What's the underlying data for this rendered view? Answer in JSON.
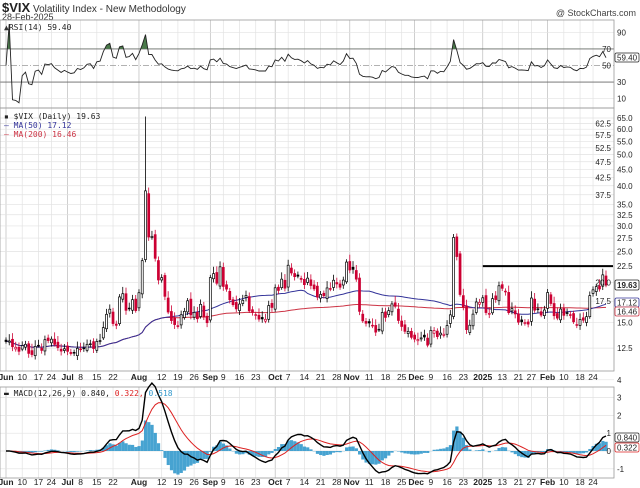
{
  "header": {
    "symbol": "$VIX",
    "title": "Volatility Index - New Methodology",
    "date": "28-Feb-2025",
    "brand": "@ StockCharts.com"
  },
  "colors": {
    "up": "#000000",
    "down": "#cc0033",
    "ma50": "#333399",
    "ma200": "#cc3344",
    "macd": "#000000",
    "signal": "#dd2222",
    "histogram": "#3399cc",
    "rsi_fill": "#4a7a4a"
  },
  "legends": {
    "rsi": "RSI(14) 59.40",
    "price": "$VIX (Daily) 19.63",
    "ma50": "MA(50) 17.12",
    "ma200": "MA(200) 16.46",
    "macd_label": "MACD(12,26,9) 0.840,",
    "macd_signal": "0.322,",
    "macd_hist": "0.518"
  },
  "badges": {
    "rsi": "59.40",
    "price": "19.63",
    "ma50": "17.12",
    "ma200": "16.46",
    "macd": "0.840",
    "signal": "0.322"
  },
  "chart_data": {
    "type": "candlestick",
    "scale": "log",
    "ylim": [
      11,
      68
    ],
    "price_ticks": [
      12.5,
      15.0,
      17.5,
      20.0,
      22.5,
      25.0,
      27.5,
      30.0,
      32.5,
      35.0,
      37.5,
      40.0,
      42.5,
      45.0,
      47.5,
      50.0,
      52.5,
      55.0,
      57.5,
      60.0,
      62.5,
      65.0
    ],
    "rsi_ticks": [
      10,
      30,
      50,
      70,
      90
    ],
    "macd_ticks": [
      -1,
      0,
      1,
      2,
      3,
      4
    ],
    "resistance": {
      "value": 22.5,
      "from": "2025-01-02"
    },
    "highs": {
      "2024-08-05": 65.73,
      "2024-12-18": 28.32
    },
    "date_labels": [
      [
        "2024-06-03",
        "Jun",
        true
      ],
      [
        "2024-06-10",
        "10",
        false
      ],
      [
        "2024-06-17",
        "17",
        false
      ],
      [
        "2024-06-24",
        "24",
        false
      ],
      [
        "2024-07-01",
        "Jul",
        true
      ],
      [
        "2024-07-08",
        "8",
        false
      ],
      [
        "2024-07-15",
        "15",
        false
      ],
      [
        "2024-07-22",
        "22",
        false
      ],
      [
        "2024-08-01",
        "Aug",
        true
      ],
      [
        "2024-08-12",
        "12",
        false
      ],
      [
        "2024-08-19",
        "19",
        false
      ],
      [
        "2024-08-26",
        "26",
        false
      ],
      [
        "2024-09-03",
        "Sep",
        true
      ],
      [
        "2024-09-09",
        "9",
        false
      ],
      [
        "2024-09-16",
        "16",
        false
      ],
      [
        "2024-09-23",
        "23",
        false
      ],
      [
        "2024-10-01",
        "Oct",
        true
      ],
      [
        "2024-10-07",
        "7",
        false
      ],
      [
        "2024-10-14",
        "14",
        false
      ],
      [
        "2024-10-21",
        "21",
        false
      ],
      [
        "2024-10-28",
        "28",
        false
      ],
      [
        "2024-11-01",
        "Nov",
        true
      ],
      [
        "2024-11-11",
        "11",
        false
      ],
      [
        "2024-11-18",
        "18",
        false
      ],
      [
        "2024-11-25",
        "25",
        false
      ],
      [
        "2024-12-02",
        "Dec",
        true
      ],
      [
        "2024-12-09",
        "9",
        false
      ],
      [
        "2024-12-16",
        "16",
        false
      ],
      [
        "2024-12-23",
        "23",
        false
      ],
      [
        "2025-01-02",
        "2025",
        true
      ],
      [
        "2025-01-13",
        "13",
        false
      ],
      [
        "2025-01-21",
        "21",
        false
      ],
      [
        "2025-01-27",
        "27",
        false
      ],
      [
        "2025-02-03",
        "Feb",
        true
      ],
      [
        "2025-02-10",
        "10",
        false
      ],
      [
        "2025-02-18",
        "18",
        false
      ],
      [
        "2025-02-24",
        "24",
        false
      ]
    ],
    "closes": [
      [
        "2024-06-03",
        13.11
      ],
      [
        "2024-06-04",
        13.16
      ],
      [
        "2024-06-05",
        12.63
      ],
      [
        "2024-06-06",
        12.58
      ],
      [
        "2024-06-07",
        12.22
      ],
      [
        "2024-06-10",
        12.74
      ],
      [
        "2024-06-11",
        12.85
      ],
      [
        "2024-06-12",
        12.04
      ],
      [
        "2024-06-13",
        11.94
      ],
      [
        "2024-06-14",
        12.66
      ],
      [
        "2024-06-17",
        12.75
      ],
      [
        "2024-06-18",
        12.3
      ],
      [
        "2024-06-20",
        13.28
      ],
      [
        "2024-06-21",
        13.2
      ],
      [
        "2024-06-24",
        13.33
      ],
      [
        "2024-06-25",
        12.84
      ],
      [
        "2024-06-26",
        12.55
      ],
      [
        "2024-06-27",
        12.24
      ],
      [
        "2024-06-28",
        12.44
      ],
      [
        "2024-07-01",
        12.22
      ],
      [
        "2024-07-02",
        12.03
      ],
      [
        "2024-07-03",
        12.09
      ],
      [
        "2024-07-05",
        12.48
      ],
      [
        "2024-07-08",
        12.37
      ],
      [
        "2024-07-09",
        12.51
      ],
      [
        "2024-07-10",
        12.85
      ],
      [
        "2024-07-11",
        12.89
      ],
      [
        "2024-07-12",
        12.46
      ],
      [
        "2024-07-15",
        13.12
      ],
      [
        "2024-07-16",
        13.19
      ],
      [
        "2024-07-17",
        14.48
      ],
      [
        "2024-07-18",
        15.93
      ],
      [
        "2024-07-19",
        16.52
      ],
      [
        "2024-07-22",
        14.91
      ],
      [
        "2024-07-23",
        14.72
      ],
      [
        "2024-07-24",
        18.04
      ],
      [
        "2024-07-25",
        18.46
      ],
      [
        "2024-07-26",
        16.39
      ],
      [
        "2024-07-29",
        16.6
      ],
      [
        "2024-07-30",
        17.69
      ],
      [
        "2024-07-31",
        16.36
      ],
      [
        "2024-08-01",
        18.59
      ],
      [
        "2024-08-02",
        23.39
      ],
      [
        "2024-08-05",
        38.57
      ],
      [
        "2024-08-06",
        27.71
      ],
      [
        "2024-08-07",
        27.85
      ],
      [
        "2024-08-08",
        23.79
      ],
      [
        "2024-08-09",
        20.37
      ],
      [
        "2024-08-12",
        20.71
      ],
      [
        "2024-08-13",
        18.12
      ],
      [
        "2024-08-14",
        16.19
      ],
      [
        "2024-08-15",
        15.23
      ],
      [
        "2024-08-16",
        14.8
      ],
      [
        "2024-08-19",
        14.65
      ],
      [
        "2024-08-20",
        15.88
      ],
      [
        "2024-08-21",
        16.27
      ],
      [
        "2024-08-22",
        17.55
      ],
      [
        "2024-08-23",
        15.86
      ],
      [
        "2024-08-26",
        16.15
      ],
      [
        "2024-08-27",
        15.43
      ],
      [
        "2024-08-28",
        17.11
      ],
      [
        "2024-08-29",
        15.65
      ],
      [
        "2024-08-30",
        15.0
      ],
      [
        "2024-09-03",
        20.72
      ],
      [
        "2024-09-04",
        21.32
      ],
      [
        "2024-09-05",
        19.9
      ],
      [
        "2024-09-06",
        22.38
      ],
      [
        "2024-09-09",
        19.45
      ],
      [
        "2024-09-10",
        19.08
      ],
      [
        "2024-09-11",
        17.69
      ],
      [
        "2024-09-12",
        17.07
      ],
      [
        "2024-09-13",
        16.56
      ],
      [
        "2024-09-16",
        17.14
      ],
      [
        "2024-09-17",
        17.61
      ],
      [
        "2024-09-18",
        18.23
      ],
      [
        "2024-09-19",
        16.33
      ],
      [
        "2024-09-20",
        16.15
      ],
      [
        "2024-09-23",
        15.89
      ],
      [
        "2024-09-24",
        15.39
      ],
      [
        "2024-09-25",
        15.41
      ],
      [
        "2024-09-26",
        15.37
      ],
      [
        "2024-09-27",
        16.96
      ],
      [
        "2024-09-30",
        16.73
      ],
      [
        "2024-10-01",
        19.26
      ],
      [
        "2024-10-02",
        18.9
      ],
      [
        "2024-10-03",
        20.49
      ],
      [
        "2024-10-04",
        19.21
      ],
      [
        "2024-10-07",
        22.64
      ],
      [
        "2024-10-08",
        21.42
      ],
      [
        "2024-10-09",
        20.86
      ],
      [
        "2024-10-10",
        20.93
      ],
      [
        "2024-10-11",
        20.46
      ],
      [
        "2024-10-14",
        19.7
      ],
      [
        "2024-10-15",
        20.64
      ],
      [
        "2024-10-16",
        19.58
      ],
      [
        "2024-10-17",
        19.11
      ],
      [
        "2024-10-18",
        18.03
      ],
      [
        "2024-10-21",
        18.37
      ],
      [
        "2024-10-22",
        18.2
      ],
      [
        "2024-10-23",
        19.24
      ],
      [
        "2024-10-24",
        19.08
      ],
      [
        "2024-10-25",
        20.33
      ],
      [
        "2024-10-28",
        19.8
      ],
      [
        "2024-10-29",
        19.34
      ],
      [
        "2024-10-30",
        20.35
      ],
      [
        "2024-10-31",
        23.16
      ],
      [
        "2024-11-01",
        21.88
      ],
      [
        "2024-11-04",
        21.98
      ],
      [
        "2024-11-05",
        20.49
      ],
      [
        "2024-11-06",
        16.27
      ],
      [
        "2024-11-07",
        15.2
      ],
      [
        "2024-11-08",
        14.94
      ],
      [
        "2024-11-11",
        14.97
      ],
      [
        "2024-11-12",
        14.71
      ],
      [
        "2024-11-13",
        14.02
      ],
      [
        "2024-11-14",
        14.31
      ],
      [
        "2024-11-15",
        16.14
      ],
      [
        "2024-11-18",
        15.58
      ],
      [
        "2024-11-19",
        16.35
      ],
      [
        "2024-11-20",
        17.16
      ],
      [
        "2024-11-21",
        16.87
      ],
      [
        "2024-11-22",
        15.24
      ],
      [
        "2024-11-25",
        14.6
      ],
      [
        "2024-11-26",
        14.1
      ],
      [
        "2024-11-27",
        14.1
      ],
      [
        "2024-11-29",
        13.51
      ],
      [
        "2024-12-02",
        13.34
      ],
      [
        "2024-12-03",
        13.3
      ],
      [
        "2024-12-04",
        13.45
      ],
      [
        "2024-12-05",
        13.54
      ],
      [
        "2024-12-06",
        12.77
      ],
      [
        "2024-12-09",
        14.19
      ],
      [
        "2024-12-10",
        14.18
      ],
      [
        "2024-12-11",
        13.58
      ],
      [
        "2024-12-12",
        13.92
      ],
      [
        "2024-12-13",
        13.81
      ],
      [
        "2024-12-16",
        14.69
      ],
      [
        "2024-12-17",
        15.87
      ],
      [
        "2024-12-18",
        27.62
      ],
      [
        "2024-12-19",
        24.09
      ],
      [
        "2024-12-20",
        18.36
      ],
      [
        "2024-12-23",
        16.78
      ],
      [
        "2024-12-24",
        14.27
      ],
      [
        "2024-12-26",
        14.73
      ],
      [
        "2024-12-27",
        15.95
      ],
      [
        "2024-12-30",
        17.4
      ],
      [
        "2024-12-31",
        17.35
      ],
      [
        "2025-01-02",
        17.93
      ],
      [
        "2025-01-03",
        16.13
      ],
      [
        "2025-01-06",
        16.04
      ],
      [
        "2025-01-07",
        17.82
      ],
      [
        "2025-01-08",
        17.7
      ],
      [
        "2025-01-10",
        19.54
      ],
      [
        "2025-01-13",
        19.19
      ],
      [
        "2025-01-14",
        18.71
      ],
      [
        "2025-01-15",
        16.12
      ],
      [
        "2025-01-16",
        16.6
      ],
      [
        "2025-01-17",
        15.97
      ],
      [
        "2025-01-21",
        15.06
      ],
      [
        "2025-01-22",
        15.1
      ],
      [
        "2025-01-23",
        15.02
      ],
      [
        "2025-01-24",
        14.85
      ],
      [
        "2025-01-27",
        17.9
      ],
      [
        "2025-01-28",
        16.41
      ],
      [
        "2025-01-29",
        16.56
      ],
      [
        "2025-01-30",
        15.84
      ],
      [
        "2025-01-31",
        16.43
      ],
      [
        "2025-02-03",
        18.62
      ],
      [
        "2025-02-04",
        17.21
      ],
      [
        "2025-02-05",
        15.77
      ],
      [
        "2025-02-06",
        15.5
      ],
      [
        "2025-02-07",
        16.54
      ],
      [
        "2025-02-10",
        15.81
      ],
      [
        "2025-02-11",
        16.02
      ],
      [
        "2025-02-12",
        15.89
      ],
      [
        "2025-02-13",
        15.1
      ],
      [
        "2025-02-14",
        14.77
      ],
      [
        "2025-02-18",
        15.35
      ],
      [
        "2025-02-19",
        15.27
      ],
      [
        "2025-02-20",
        15.66
      ],
      [
        "2025-02-21",
        18.21
      ],
      [
        "2025-02-24",
        18.98
      ],
      [
        "2025-02-25",
        19.43
      ],
      [
        "2025-02-26",
        19.1
      ],
      [
        "2025-02-27",
        21.13
      ],
      [
        "2025-02-28",
        19.63
      ]
    ]
  }
}
